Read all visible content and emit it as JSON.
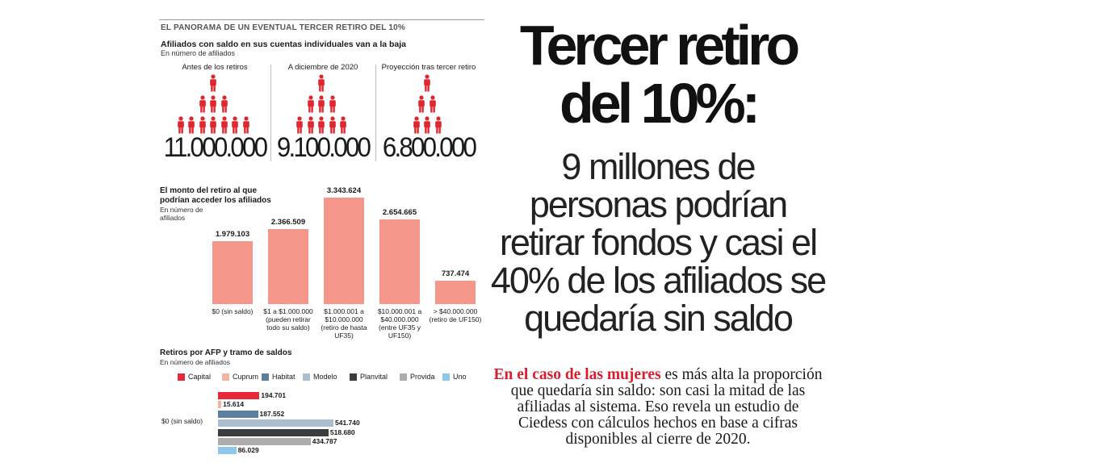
{
  "panorama_title": "EL PANORAMA DE UN EVENTUAL TERCER RETIRO DEL 10%",
  "afiliados": {
    "heading": "Afiliados con saldo en sus cuentas individuales van a la baja",
    "subheading": "En número de afiliados",
    "periods": [
      {
        "label": "Antes de los retiros",
        "value": "11.000.000"
      },
      {
        "label": "A diciembre de 2020",
        "value": "9.100.000"
      },
      {
        "label": "Proyección tras tercer retiro",
        "value": "6.800.000"
      }
    ],
    "icon_color": "#e0262f",
    "icon": "person-icon"
  },
  "monto": {
    "heading_line1": "El monto del retiro al que",
    "heading_line2": "podrían acceder los afiliados",
    "sub_line1": "En número de",
    "sub_line2": "afiliados"
  },
  "retiros_afp": {
    "heading": "Retiros por AFP y tramo de saldos",
    "subheading": "En número de afiliados",
    "row_label": "$0 (sin saldo)"
  },
  "chart_data": [
    {
      "type": "bar",
      "categories": [
        "$0 (sin saldo)",
        "$1 a $1.000.000 (pueden retirar todo su saldo)",
        "$1.000.001 a $10.000.000 (retiro de hasta UF35)",
        "$10.000.001 a $40.000.000 (entre UF35 y UF150)",
        "> $40.000.000 (retiro de UF150)"
      ],
      "category_lines": [
        [
          "$0 (sin saldo)"
        ],
        [
          "$1 a $1.000.000",
          "(pueden retirar",
          "todo su saldo)"
        ],
        [
          "$1.000.001 a",
          "$10.000.000",
          "(retiro de hasta",
          "UF35)"
        ],
        [
          "$10.000.001 a",
          "$40.000.000",
          "(entre UF35 y",
          "UF150)"
        ],
        [
          "> $40.000.000",
          "(retiro de UF150)"
        ]
      ],
      "values": [
        1979103,
        2366509,
        3343624,
        2654665,
        737474
      ],
      "value_labels": [
        "1.979.103",
        "2.366.509",
        "3.343.624",
        "2.654.665",
        "737.474"
      ],
      "color": "#f4978a",
      "grid": false
    },
    {
      "type": "bar",
      "orientation": "horizontal",
      "categories": [
        "$0 (sin saldo)"
      ],
      "series": [
        {
          "name": "Capital",
          "color": "#e8283a",
          "values": [
            194701
          ],
          "value_label": "194.701"
        },
        {
          "name": "Cuprum",
          "color": "#f4b4a1",
          "values": [
            15614
          ],
          "value_label": "15.614"
        },
        {
          "name": "Habitat",
          "color": "#5b7f9e",
          "values": [
            187552
          ],
          "value_label": "187.552"
        },
        {
          "name": "Modelo",
          "color": "#a9bfd0",
          "values": [
            541740
          ],
          "value_label": "541.740"
        },
        {
          "name": "Planvital",
          "color": "#3c3c3c",
          "values": [
            518680
          ],
          "value_label": "518.680"
        },
        {
          "name": "Provida",
          "color": "#adadad",
          "values": [
            434787
          ],
          "value_label": "434.787"
        },
        {
          "name": "Uno",
          "color": "#8fc7ea",
          "values": [
            86029
          ],
          "value_label": "86.029"
        }
      ],
      "legend": "top",
      "grid": false
    }
  ],
  "headline": {
    "line1": "Tercer retiro",
    "line2": "del 10%:"
  },
  "subhead": {
    "line1": "9 millones de",
    "line2": "personas podrían",
    "line3": "retirar fondos y casi el",
    "line4": "40% de los afiliados se",
    "line5": "quedaría sin saldo"
  },
  "body": {
    "lead": "En el caso de las mujeres",
    "rest": " es más alta la proporción que quedaría sin saldo: son casi la mitad de las afiliadas al sistema. Eso revela un estudio de Ciedess con cálculos hechos en base a cifras disponibles al cierre de 2020."
  }
}
